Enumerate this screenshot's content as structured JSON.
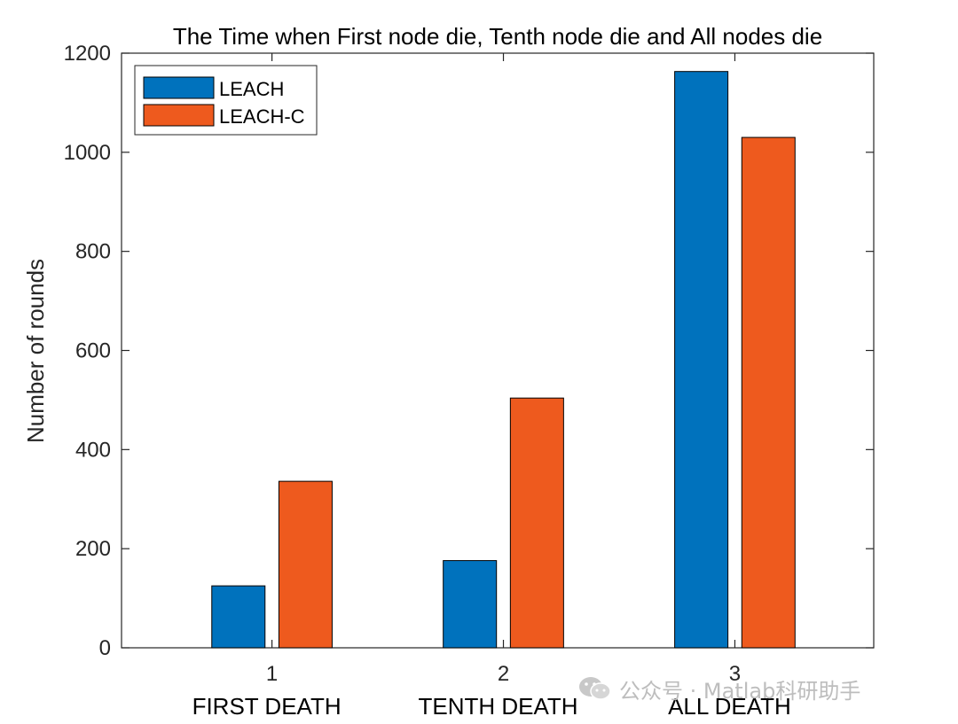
{
  "chart_data": {
    "type": "bar",
    "title": "The Time when First node die, Tenth node die and All nodes die",
    "xlabel": "",
    "ylabel": "Number of rounds",
    "x_ticks": [
      "1",
      "2",
      "3"
    ],
    "categories": [
      "FIRST DEATH",
      "TENTH DEATH",
      "ALL DEATH"
    ],
    "ylim": [
      0,
      1200
    ],
    "yticks": [
      0,
      200,
      400,
      600,
      800,
      1000,
      1200
    ],
    "grid": false,
    "legend_position": "top-left",
    "series": [
      {
        "name": "LEACH",
        "color": "#0072BD",
        "values": [
          125,
          176,
          1163
        ]
      },
      {
        "name": "LEACH-C",
        "color": "#EE5A1E",
        "values": [
          336,
          504,
          1030
        ]
      }
    ]
  },
  "watermark": {
    "icon": "wechat-icon",
    "text": "公众号 · Matlab科研助手"
  }
}
